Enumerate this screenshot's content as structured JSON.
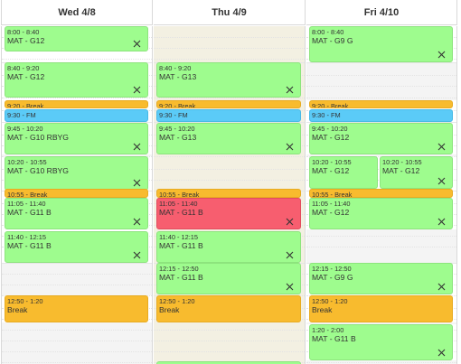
{
  "days": [
    {
      "label": "Wed 4/8",
      "events": [
        {
          "time": "8:00 - 8:40",
          "title": "MAT - G12",
          "color": "green",
          "closable": true
        },
        {
          "time": "8:40 - 9:20",
          "title": "MAT - G12",
          "color": "green",
          "closable": true
        },
        {
          "time": "9:20 - Break",
          "color": "orange",
          "inline": true
        },
        {
          "time": "9:30 - FM",
          "color": "blue",
          "inline": true
        },
        {
          "time": "9:45 - 10:20",
          "title": "MAT - G10 RBYG",
          "color": "green",
          "closable": true
        },
        {
          "time": "10:20 - 10:55",
          "title": "MAT - G10 RBYG",
          "color": "green",
          "closable": true
        },
        {
          "time": "10:55 - Break",
          "color": "orange",
          "inline": true
        },
        {
          "time": "11:05 - 11:40",
          "title": "MAT - G11 B",
          "color": "green",
          "closable": true
        },
        {
          "time": "11:40 - 12:15",
          "title": "MAT - G11 B",
          "color": "green",
          "closable": true
        },
        {
          "time": "12:50 - 1:20",
          "title": "Break",
          "color": "orange",
          "closable": false
        }
      ]
    },
    {
      "label": "Thu 4/9",
      "events": [
        {
          "time": "8:40 - 9:20",
          "title": "MAT - G13",
          "color": "green",
          "closable": true
        },
        {
          "time": "9:20 - Break",
          "color": "orange",
          "inline": true
        },
        {
          "time": "9:30 - FM",
          "color": "blue",
          "inline": true
        },
        {
          "time": "9:45 - 10:20",
          "title": "MAT - G13",
          "color": "green",
          "closable": true
        },
        {
          "time": "10:55 - Break",
          "color": "orange",
          "inline": true
        },
        {
          "time": "11:05 - 11:40",
          "title": "MAT - G11 B",
          "color": "red",
          "closable": true
        },
        {
          "time": "11:40 - 12:15",
          "title": "MAT - G11 B",
          "color": "green",
          "closable": true
        },
        {
          "time": "12:15 - 12:50",
          "title": "MAT - G11 B",
          "color": "green",
          "closable": true
        },
        {
          "time": "12:50 - 1:20",
          "title": "Break",
          "color": "orange",
          "closable": false
        },
        {
          "time": "2:00 - 2:40",
          "title": "",
          "color": "green",
          "closable": false
        }
      ]
    },
    {
      "label": "Fri 4/10",
      "events": [
        {
          "time": "8:00 - 8:40",
          "title": "MAT - G9 G",
          "color": "green",
          "closable": true
        },
        {
          "time": "9:20 - Break",
          "color": "orange",
          "inline": true
        },
        {
          "time": "9:30 - FM",
          "color": "blue",
          "inline": true
        },
        {
          "time": "9:45 - 10:20",
          "title": "MAT - G12",
          "color": "green",
          "closable": true
        },
        {
          "time": "10:20 - 10:55",
          "title": "MAT - G12",
          "color": "green",
          "closable": false
        },
        {
          "time": "10:20 - 10:55",
          "title": "MAT - G12",
          "color": "green",
          "closable": true
        },
        {
          "time": "10:55 - Break",
          "color": "orange",
          "inline": true
        },
        {
          "time": "11:05 - 11:40",
          "title": "MAT - G12",
          "color": "green",
          "closable": true
        },
        {
          "time": "12:15 - 12:50",
          "title": "MAT - G9 G",
          "color": "green",
          "closable": true
        },
        {
          "time": "12:50 - 1:20",
          "title": "Break",
          "color": "orange",
          "closable": false
        },
        {
          "time": "1:20 - 2:00",
          "title": "MAT - G11 B",
          "color": "green",
          "closable": true
        }
      ]
    }
  ],
  "today_label": "Thu 4/9",
  "colors": {
    "green": "#9efc8e",
    "orange": "#f8bb2e",
    "blue": "#5bcbf7",
    "red": "#f75e6f",
    "today_bg": "#f3f0e2"
  },
  "icons": {
    "remove_event": "close-icon"
  }
}
